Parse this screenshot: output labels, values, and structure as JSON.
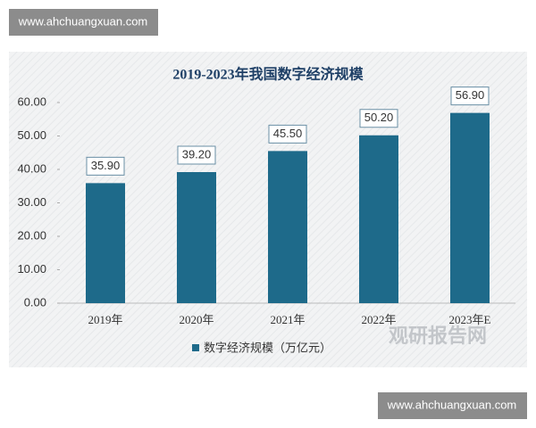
{
  "banner_top": "www.ahchuangxuan.com",
  "banner_bottom": "www.ahchuangxuan.com",
  "watermark": "观研报告网",
  "chart_data": {
    "type": "bar",
    "title": "2019-2023年我国数字经济规模",
    "categories": [
      "2019年",
      "2020年",
      "2021年",
      "2022年",
      "2023年E"
    ],
    "series": [
      {
        "name": "数字经济规模（万亿元）",
        "color": "#1e6a8a",
        "values": [
          35.9,
          39.2,
          45.5,
          50.2,
          56.9
        ],
        "value_labels": [
          "35.90",
          "39.20",
          "45.50",
          "50.20",
          "56.90"
        ]
      }
    ],
    "ylim": [
      0,
      60
    ],
    "yticks": [
      {
        "value": 0,
        "label": "0.00"
      },
      {
        "value": 10,
        "label": "10.00"
      },
      {
        "value": 20,
        "label": "20.00"
      },
      {
        "value": 30,
        "label": "30.00"
      },
      {
        "value": 40,
        "label": "40.00"
      },
      {
        "value": 50,
        "label": "50.00"
      },
      {
        "value": 60,
        "label": "60.00"
      }
    ],
    "legend": "bottom"
  }
}
